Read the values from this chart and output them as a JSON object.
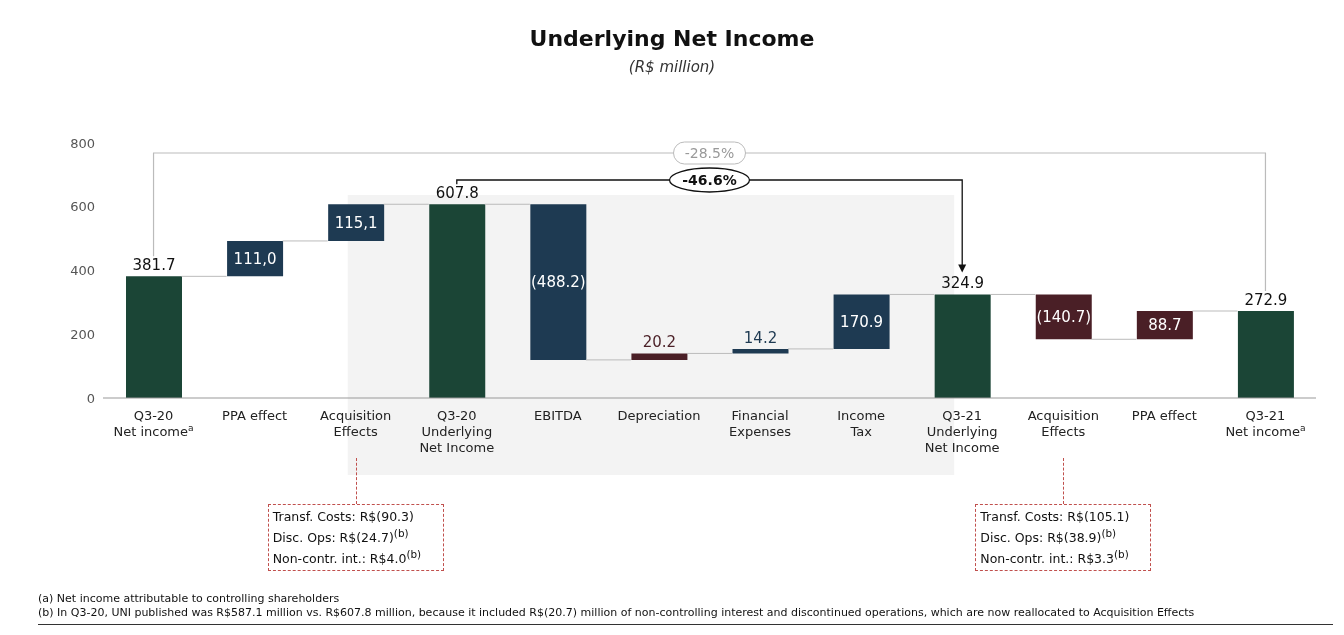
{
  "chart_data": {
    "type": "bar",
    "title": "Underlying Net Income",
    "subtitle": "(R$ million)",
    "categories": [
      "Q3-20\nNet income$^{a}$",
      "PPA effect",
      "Acquisition\nEffects",
      "Q3-20\nUnderlying\nNet Income",
      "EBITDA",
      "Depreciation",
      "Financial\nExpenses",
      "Income\nTax",
      "Q3-21\nUnderlying\nNet Income",
      "Acquisition\nEffects",
      "PPA effect",
      "Q3-21\nNet income$^{a}$"
    ],
    "values": [
      381.7,
      111.0,
      115.1,
      607.8,
      -488.2,
      20.2,
      14.2,
      170.9,
      324.9,
      -140.7,
      88.7,
      272.9
    ],
    "base": [
      0,
      381.7,
      492.7,
      0,
      607.8,
      119.6,
      139.8,
      154.0,
      0,
      324.9,
      184.2,
      0
    ],
    "colors": [
      "#1b4536",
      "#1e3a52",
      "#1e3a52",
      "#1b4536",
      "#1e3a52",
      "#4a1f26",
      "#1e3a52",
      "#1e3a52",
      "#1b4536",
      "#4a1f26",
      "#4a1f26",
      "#1b4536"
    ],
    "value_labels": [
      "381.7",
      "111,0",
      "115,1",
      "607.8",
      "(488.2)",
      "20.2",
      "14.2",
      "170.9",
      "324.9",
      "(140.7)",
      "88.7",
      "272.9"
    ],
    "ylim": [
      0,
      800
    ],
    "yticks": [
      0,
      200,
      400,
      600,
      800
    ],
    "bands": [
      {
        "axis": "x",
        "from": "Acquisition\nEffects",
        "to": "Q3-21\nUnderlying\nNet Income",
        "color": "#f3f3f3"
      }
    ],
    "annotations": [
      "-28.5%",
      "-46.6%",
      "Transf. Costs: R$(90.3)",
      "Disc. Ops: R$(24.7)$^{(b)}$",
      "Non-contr. int.: R$4.0$^{(b)}$",
      "Transf. Costs: R$(105.1)",
      "Disc. Ops: R$(38.9)$^{(b)}$",
      "Non-contr. int.: R$3.3$^{(b)}$",
      "(a) Net income attributable to controlling shareholders",
      "(b) In Q3-20, UNI published was R$587.1 million vs. R$607.8 million, because it included R$(20.7) million of non-controlling interest and discontinued operations, which are now reallocated to Acquisition Effects"
    ]
  }
}
